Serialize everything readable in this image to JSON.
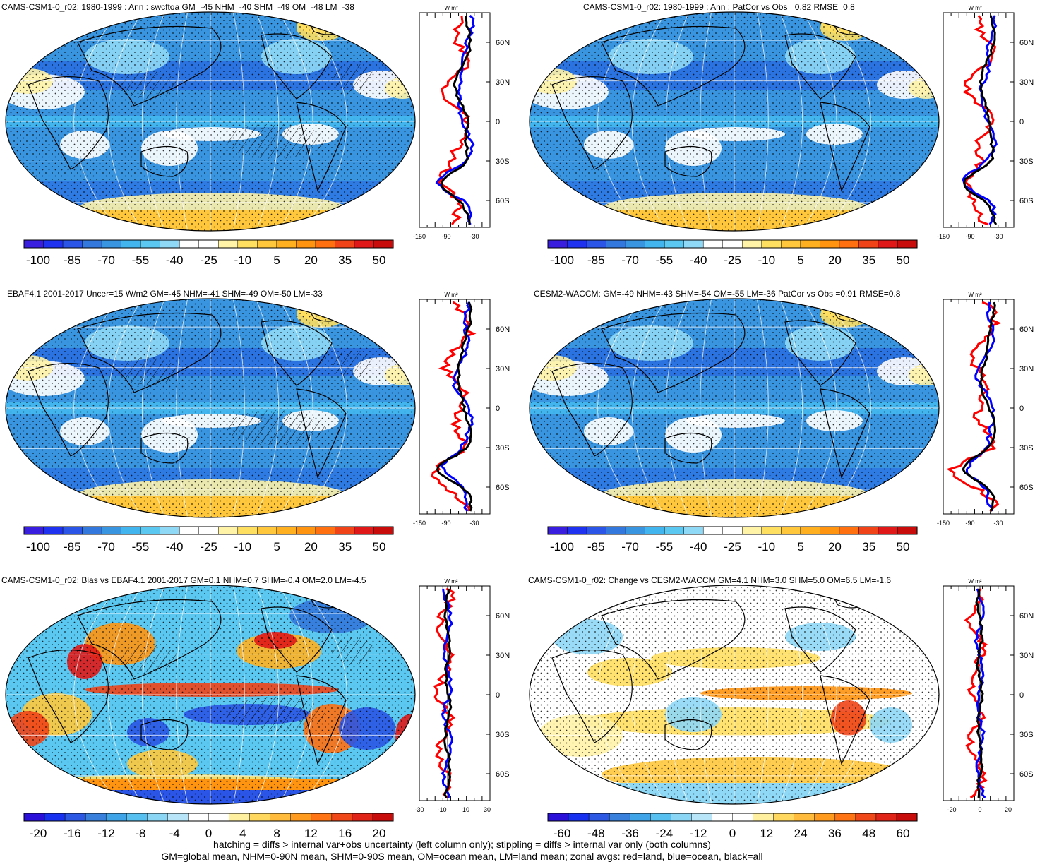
{
  "panels": [
    {
      "title": "CAMS-CSM1-0_r02: 1980-1999 : Ann : swcftoa GM=-45 NHM=-40 SHM=-49 OM=-48 LM=-38",
      "colorbar_ticks": [
        "-100",
        "-85",
        "-70",
        "-55",
        "-40",
        "-25",
        "-10",
        "5",
        "20",
        "35",
        "50"
      ],
      "zonal_unit": "W m²",
      "zonal_xticks": [
        "-150",
        "-90",
        "-30"
      ],
      "lat_labels": [
        "60N",
        "30N",
        "0",
        "30S",
        "60S"
      ]
    },
    {
      "title": "CAMS-CSM1-0_r02: 1980-1999 : Ann : PatCor vs Obs =0.82 RMSE=0.8",
      "colorbar_ticks": [
        "-100",
        "-85",
        "-70",
        "-55",
        "-40",
        "-25",
        "-10",
        "5",
        "20",
        "35",
        "50"
      ],
      "zonal_unit": "W m²",
      "zonal_xticks": [
        "-150",
        "-90",
        "-30"
      ],
      "lat_labels": [
        "60N",
        "30N",
        "0",
        "30S",
        "60S"
      ]
    },
    {
      "title": "EBAF4.1 2001-2017 Uncer=15 W/m2 GM=-45 NHM=-41 SHM=-49 OM=-50 LM=-33",
      "colorbar_ticks": [
        "-100",
        "-85",
        "-70",
        "-55",
        "-40",
        "-25",
        "-10",
        "5",
        "20",
        "35",
        "50"
      ],
      "zonal_unit": "W m²",
      "zonal_xticks": [
        "-150",
        "-90",
        "-30"
      ],
      "lat_labels": [
        "60N",
        "30N",
        "0",
        "30S",
        "60S"
      ]
    },
    {
      "title": "CESM2-WACCM: GM=-49 NHM=-43 SHM=-54 OM=-55 LM=-36 PatCor vs Obs =0.91 RMSE=0.8",
      "colorbar_ticks": [
        "-100",
        "-85",
        "-70",
        "-55",
        "-40",
        "-25",
        "-10",
        "5",
        "20",
        "35",
        "50"
      ],
      "zonal_unit": "W m²",
      "zonal_xticks": [
        "-150",
        "-90",
        "-30"
      ],
      "lat_labels": [
        "60N",
        "30N",
        "0",
        "30S",
        "60S"
      ]
    },
    {
      "title": "CAMS-CSM1-0_r02: Bias vs EBAF4.1 2001-2017 GM=0.1 NHM=0.7 SHM=-0.4 OM=2.0 LM=-4.5",
      "colorbar_ticks": [
        "-20",
        "-16",
        "-12",
        "-8",
        "-4",
        "0",
        "4",
        "8",
        "12",
        "16",
        "20"
      ],
      "zonal_unit": "W m²",
      "zonal_xticks": [
        "-30",
        "-10",
        "10",
        "30"
      ],
      "lat_labels": [
        "60N",
        "30N",
        "0",
        "30S",
        "60S"
      ]
    },
    {
      "title": "CAMS-CSM1-0_r02: Change vs CESM2-WACCM GM=4.1 NHM=3.0 SHM=5.0 OM=6.5 LM=-1.6",
      "colorbar_ticks": [
        "-60",
        "-48",
        "-36",
        "-24",
        "-12",
        "0",
        "12",
        "24",
        "36",
        "48",
        "60"
      ],
      "zonal_unit": "W m²",
      "zonal_xticks": [
        "-20",
        "0",
        "20"
      ],
      "lat_labels": [
        "60N",
        "30N",
        "0",
        "30S",
        "60S"
      ]
    }
  ],
  "footer": {
    "line1": "hatching = diffs > internal var+obs uncertainty (left column only); stippling = diffs > internal var only (both columns)",
    "line2": "GM=global mean, NHM=0-90N mean, SHM=0-90S mean, OM=ocean mean, LM=land mean; zonal avgs: red=land, blue=ocean, black=all"
  },
  "colors": {
    "abs_scale": [
      "#3a1ee0",
      "#1e32f0",
      "#2a55e6",
      "#3378dc",
      "#3a95e0",
      "#42b4ee",
      "#5bc8f2",
      "#8fd8f6",
      "#ffffff",
      "#ffffff",
      "#fff3a8",
      "#ffdf60",
      "#ffc83c",
      "#ffb020",
      "#ff9410",
      "#ff7010",
      "#f04418",
      "#e01818",
      "#c80c0c"
    ],
    "diff_scale": [
      "#2a10d8",
      "#1830f0",
      "#2c58e4",
      "#3880dc",
      "#40a4e8",
      "#58c0f0",
      "#8ad6f4",
      "#b8e6f8",
      "#ffffff",
      "#ffffff",
      "#fff0a0",
      "#ffd860",
      "#ffbc3c",
      "#ff9c20",
      "#ff7414",
      "#f04818",
      "#e02418",
      "#c80c0c"
    ],
    "land_line": "#ff0000",
    "ocean_line": "#0000ff",
    "all_line": "#000000"
  }
}
